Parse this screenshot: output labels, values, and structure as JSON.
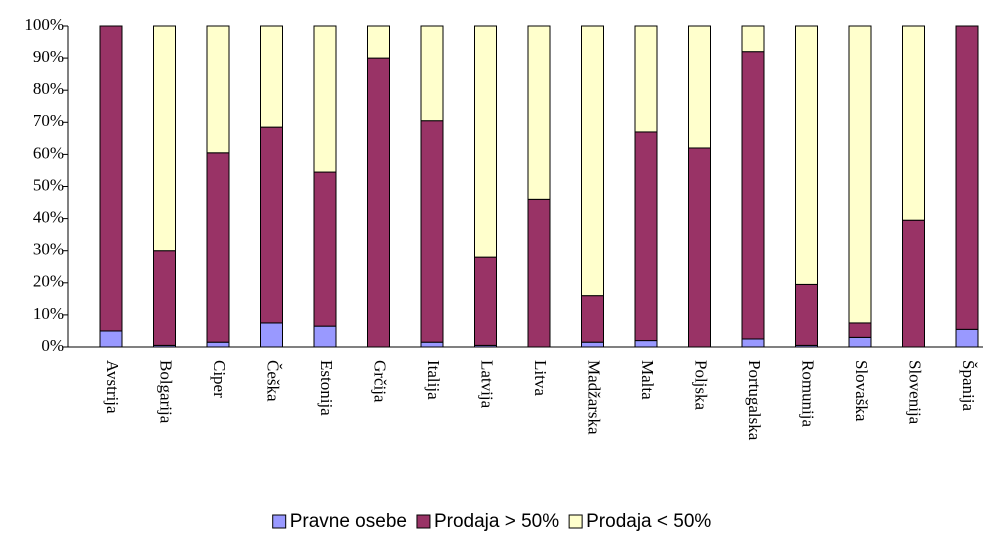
{
  "chart_data": {
    "type": "stacked_bar",
    "categories": [
      "Avstrija",
      "Bolgarija",
      "Ciper",
      "Češka",
      "Estonija",
      "Grčija",
      "Italija",
      "Latvija",
      "Litva",
      "Madžarska",
      "Malta",
      "Poljska",
      "Portugalska",
      "Romunija",
      "Slovaška",
      "Slovenija",
      "Španija"
    ],
    "series": [
      {
        "name": "Pravne osebe",
        "color": "#9999ff",
        "values": [
          5,
          0.5,
          1.5,
          7.5,
          6.5,
          0,
          1.5,
          0.5,
          0,
          1.5,
          2,
          0,
          2.5,
          0.5,
          3,
          0,
          5.5
        ]
      },
      {
        "name": "Prodaja > 50%",
        "color": "#993366",
        "values": [
          95,
          29.5,
          59,
          61,
          48,
          90,
          69,
          27.5,
          46,
          14.5,
          65,
          62,
          89.5,
          19,
          4.5,
          39.5,
          94.5
        ]
      },
      {
        "name": "Prodaja < 50%",
        "color": "#ffffcc",
        "values": [
          0,
          70,
          39.5,
          31.5,
          45.5,
          10,
          29.5,
          72,
          54,
          84,
          33,
          38,
          8,
          80.5,
          92.5,
          60.5,
          0
        ]
      }
    ],
    "ylim": [
      0,
      100
    ],
    "yticks": [
      {
        "value": 0,
        "label": "0%"
      },
      {
        "value": 10,
        "label": "10%"
      },
      {
        "value": 20,
        "label": "20%"
      },
      {
        "value": 30,
        "label": "30%"
      },
      {
        "value": 40,
        "label": "40%"
      },
      {
        "value": 50,
        "label": "50%"
      },
      {
        "value": 60,
        "label": "60%"
      },
      {
        "value": 70,
        "label": "70%"
      },
      {
        "value": 80,
        "label": "80%"
      },
      {
        "value": 90,
        "label": "90%"
      },
      {
        "value": 100,
        "label": "100%"
      }
    ],
    "legend": "bottom"
  }
}
